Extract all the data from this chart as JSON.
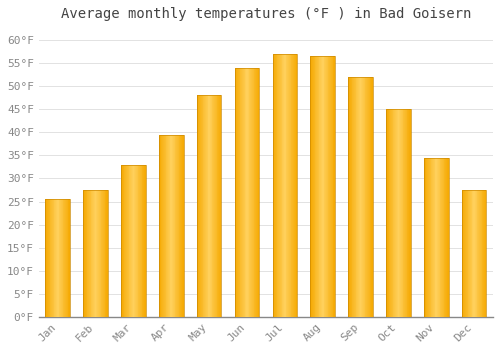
{
  "title": "Average monthly temperatures (°F ) in Bad Goisern",
  "months": [
    "Jan",
    "Feb",
    "Mar",
    "Apr",
    "May",
    "Jun",
    "Jul",
    "Aug",
    "Sep",
    "Oct",
    "Nov",
    "Dec"
  ],
  "values": [
    25.5,
    27.5,
    33.0,
    39.5,
    48.0,
    54.0,
    57.0,
    56.5,
    52.0,
    45.0,
    34.5,
    27.5
  ],
  "bar_color_light": "#FFD060",
  "bar_color_dark": "#F5A800",
  "background_color": "#FFFFFF",
  "grid_color": "#DDDDDD",
  "ylim": [
    0,
    63
  ],
  "yticks": [
    0,
    5,
    10,
    15,
    20,
    25,
    30,
    35,
    40,
    45,
    50,
    55,
    60
  ],
  "title_fontsize": 10,
  "tick_fontsize": 8,
  "tick_label_color": "#888888",
  "title_color": "#444444",
  "font_family": "monospace"
}
